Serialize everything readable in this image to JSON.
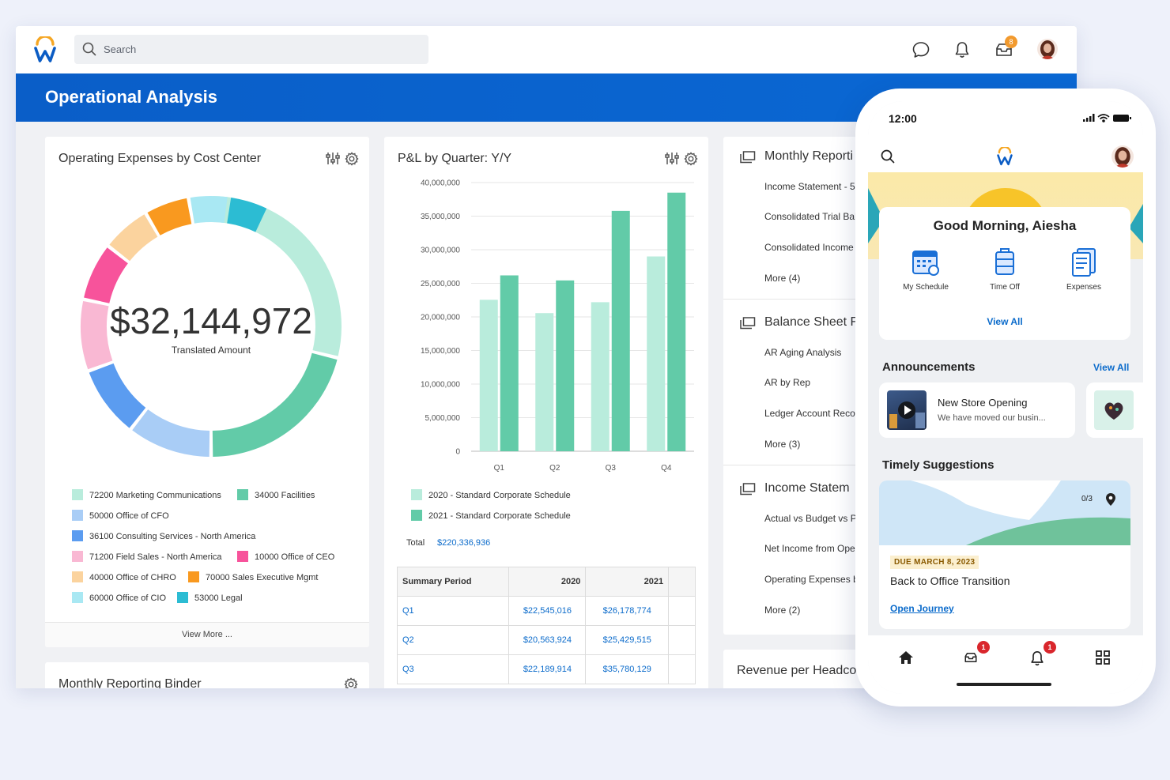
{
  "topbar": {
    "search_placeholder": "Search",
    "inbox_badge": "8"
  },
  "banner": {
    "title": "Operational Analysis"
  },
  "expenses_card": {
    "title": "Operating Expenses by Cost Center",
    "total": "$32,144,972",
    "total_label": "Translated Amount",
    "view_more": "View More ...",
    "legend": [
      {
        "label": "72200 Marketing Communications",
        "color": "#b9ecdc"
      },
      {
        "label": "34000 Facilities",
        "color": "#62cba8"
      },
      {
        "label": "50000 Office of CFO",
        "color": "#a9cdf6"
      },
      {
        "label": "36100 Consulting Services - North America",
        "color": "#5b9cf0"
      },
      {
        "label": "71200 Field Sales - North America",
        "color": "#f9b8d3"
      },
      {
        "label": "10000 Office of CEO",
        "color": "#f7539b"
      },
      {
        "label": "40000 Office of CHRO",
        "color": "#fbd39e"
      },
      {
        "label": "70000 Sales Executive Mgmt",
        "color": "#f9991f"
      },
      {
        "label": "60000 Office of CIO",
        "color": "#a9e8f3"
      },
      {
        "label": "53000 Legal",
        "color": "#2cbcd3"
      }
    ]
  },
  "binder_card": {
    "title": "Monthly Reporting Binder"
  },
  "pl_card": {
    "title": "P&L by Quarter: Y/Y",
    "total_label": "Total",
    "total_value": "$220,336,936",
    "table": {
      "headers": [
        "Summary Period",
        "2020",
        "2021"
      ],
      "rows": [
        [
          "Q1",
          "$22,545,016",
          "$26,178,774"
        ],
        [
          "Q2",
          "$20,563,924",
          "$25,429,515"
        ],
        [
          "Q3",
          "$22,189,914",
          "$35,780,129"
        ]
      ]
    }
  },
  "chart_data": {
    "type": "bar",
    "categories": [
      "Q1",
      "Q2",
      "Q3",
      "Q4"
    ],
    "series": [
      {
        "name": "2020 - Standard Corporate Schedule",
        "color": "#b9ecdc",
        "values": [
          22545016,
          20563924,
          22189914,
          29000000
        ]
      },
      {
        "name": "2021 - Standard Corporate Schedule",
        "color": "#62cba8",
        "values": [
          26178774,
          25429515,
          35780129,
          38500000
        ]
      }
    ],
    "y_ticks": [
      "40,000,000",
      "35,000,000",
      "30,000,000",
      "25,000,000",
      "20,000,000",
      "15,000,000",
      "10,000,000",
      "5,000,000",
      "0"
    ],
    "ylim": [
      0,
      40000000
    ],
    "grid": true,
    "legend_position": "bottom"
  },
  "reports": {
    "sections": [
      {
        "title": "Monthly Reporti",
        "items": [
          "Income Statement - 5",
          "Consolidated Trial Bal",
          "Consolidated Income",
          "More (4)"
        ]
      },
      {
        "title": "Balance Sheet F",
        "items": [
          "AR Aging Analysis",
          "AR by Rep",
          "Ledger Account Reco",
          "More (3)"
        ]
      },
      {
        "title": "Income Statem",
        "items": [
          "Actual vs Budget vs P",
          "Net Income from Ope",
          "Operating Expenses b",
          "More (2)"
        ]
      }
    ],
    "revenue_title": "Revenue per Headco"
  },
  "phone": {
    "time": "12:00",
    "greeting": "Good Morning, Aiesha",
    "quick_actions": [
      "My Schedule",
      "Time Off",
      "Expenses"
    ],
    "view_all": "View All",
    "announcements_title": "Announcements",
    "announcements_view_all": "View All",
    "announcement": {
      "title": "New Store Opening",
      "text": "We have moved our busin..."
    },
    "suggestions_title": "Timely Suggestions",
    "suggestion": {
      "progress": "0/3",
      "due": "DUE MARCH 8, 2023",
      "title": "Back to Office Transition",
      "link": "Open Journey"
    },
    "tab_badges": {
      "inbox": "1",
      "notifications": "1"
    }
  }
}
